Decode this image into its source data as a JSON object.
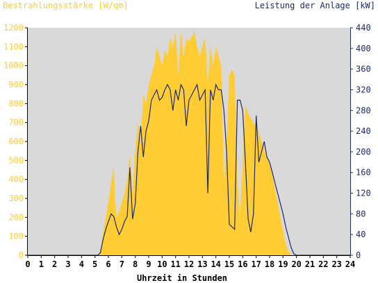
{
  "chart_data": {
    "type": "area",
    "left_axis_title": "Bestrahlungsstärke [W/qm]",
    "right_axis_title": "Leistung der Anlage [kW]",
    "xlabel": "Uhrzeit in Stunden",
    "xlim": [
      0,
      24
    ],
    "ylim_left": [
      0,
      1200
    ],
    "ylim_right": [
      0,
      440
    ],
    "x_ticks": [
      "0",
      "1",
      "2",
      "3",
      "4",
      "5",
      "6",
      "7",
      "8",
      "9",
      "10",
      "11",
      "12",
      "13",
      "14",
      "15",
      "16",
      "17",
      "18",
      "19",
      "20",
      "21",
      "22",
      "23",
      "24"
    ],
    "y_ticks_left": [
      "0",
      "100",
      "200",
      "300",
      "400",
      "500",
      "600",
      "700",
      "800",
      "900",
      "1000",
      "1100",
      "1200"
    ],
    "y_ticks_right": [
      "0",
      "40",
      "80",
      "120",
      "160",
      "200",
      "240",
      "280",
      "320",
      "360",
      "400",
      "440"
    ],
    "grid": false,
    "colors": {
      "plot_background": "#d9d9d9",
      "irradiance_fill": "#ffcc33",
      "power_line": "#1a2a6a",
      "left_axis_text": "#ffcc33",
      "right_axis_text": "#1a2a6a",
      "x_axis_text": "#000000"
    },
    "series": [
      {
        "axis": "left",
        "style": "area",
        "x": [
          0,
          5.2,
          5.4,
          5.6,
          5.8,
          6.0,
          6.2,
          6.4,
          6.5,
          6.6,
          6.8,
          7.0,
          7.2,
          7.4,
          7.6,
          7.8,
          8.0,
          8.2,
          8.4,
          8.6,
          8.8,
          9.0,
          9.2,
          9.4,
          9.6,
          9.8,
          10.0,
          10.2,
          10.4,
          10.6,
          10.8,
          11.0,
          11.2,
          11.4,
          11.6,
          11.8,
          12.0,
          12.2,
          12.4,
          12.6,
          12.8,
          13.0,
          13.2,
          13.4,
          13.6,
          13.8,
          14.0,
          14.2,
          14.4,
          14.6,
          14.8,
          15.0,
          15.2,
          15.4,
          15.6,
          15.8,
          16.0,
          16.2,
          16.4,
          16.6,
          16.8,
          17.0,
          17.2,
          17.4,
          17.6,
          17.8,
          18.0,
          18.2,
          18.4,
          18.6,
          18.8,
          19.0,
          19.2,
          19.4,
          19.6,
          19.8,
          20.0,
          20.2,
          24
        ],
        "y": [
          0,
          0,
          20,
          120,
          200,
          280,
          380,
          470,
          300,
          200,
          230,
          280,
          320,
          400,
          530,
          330,
          550,
          700,
          600,
          850,
          800,
          900,
          950,
          1000,
          1100,
          1050,
          1000,
          1080,
          1050,
          1150,
          1100,
          1180,
          950,
          1180,
          1050,
          1140,
          1130,
          1150,
          1180,
          1100,
          1050,
          1100,
          1150,
          900,
          1100,
          1000,
          1100,
          1050,
          1000,
          400,
          600,
          950,
          980,
          950,
          400,
          200,
          500,
          800,
          750,
          720,
          700,
          680,
          650,
          600,
          560,
          520,
          480,
          420,
          350,
          280,
          200,
          130,
          60,
          20,
          5,
          0,
          0,
          0,
          0
        ]
      },
      {
        "axis": "right",
        "style": "line",
        "x": [
          0,
          5.2,
          5.4,
          5.6,
          5.8,
          6.0,
          6.2,
          6.4,
          6.6,
          6.8,
          7.0,
          7.2,
          7.4,
          7.6,
          7.8,
          8.0,
          8.2,
          8.4,
          8.6,
          8.8,
          9.0,
          9.2,
          9.4,
          9.6,
          9.8,
          10.0,
          10.2,
          10.4,
          10.6,
          10.8,
          11.0,
          11.2,
          11.4,
          11.6,
          11.8,
          12.0,
          12.2,
          12.4,
          12.6,
          12.8,
          13.0,
          13.2,
          13.4,
          13.6,
          13.8,
          14.0,
          14.2,
          14.4,
          14.6,
          14.8,
          15.0,
          15.2,
          15.4,
          15.6,
          15.8,
          16.0,
          16.2,
          16.4,
          16.6,
          16.8,
          17.0,
          17.2,
          17.4,
          17.6,
          17.8,
          18.0,
          18.2,
          18.4,
          18.6,
          18.8,
          19.0,
          19.2,
          19.4,
          19.6,
          19.8,
          20.0,
          20.2,
          24
        ],
        "y": [
          0,
          0,
          5,
          30,
          50,
          65,
          80,
          75,
          55,
          40,
          50,
          65,
          75,
          170,
          70,
          100,
          200,
          250,
          190,
          240,
          260,
          300,
          310,
          320,
          300,
          305,
          320,
          330,
          320,
          280,
          320,
          300,
          330,
          320,
          250,
          300,
          310,
          320,
          330,
          300,
          310,
          320,
          120,
          320,
          300,
          330,
          320,
          320,
          280,
          200,
          60,
          55,
          50,
          300,
          300,
          280,
          180,
          70,
          45,
          80,
          270,
          180,
          200,
          220,
          190,
          180,
          160,
          140,
          120,
          100,
          80,
          55,
          35,
          15,
          3,
          0,
          0,
          0
        ]
      }
    ]
  }
}
